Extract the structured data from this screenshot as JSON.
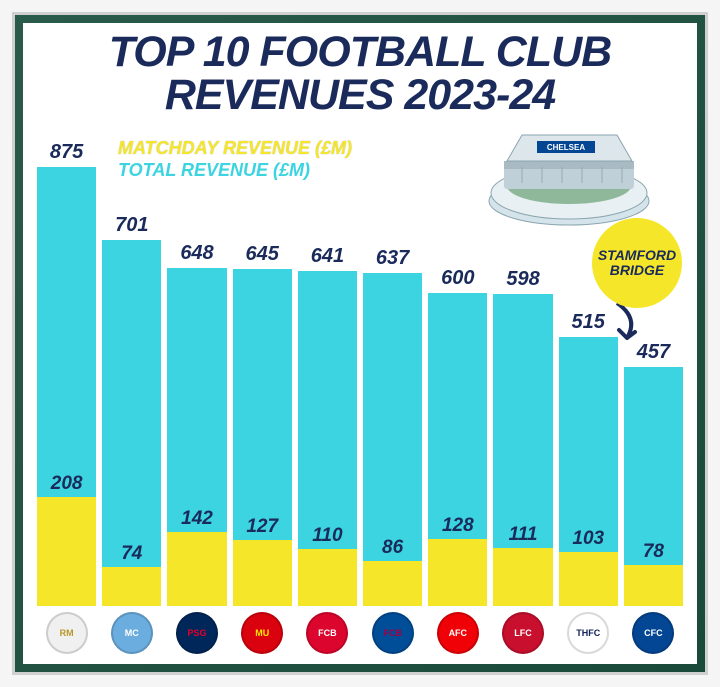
{
  "title_line1": "TOP 10 FOOTBALL CLUB",
  "title_line2": "REVENUES 2023-24",
  "title_fontsize": 43,
  "legend": {
    "matchday": "MATCHDAY REVENUE (£M)",
    "total": "TOTAL REVENUE (£M)",
    "fontsize": 18
  },
  "callout": {
    "line1": "STAMFORD",
    "line2": "BRIDGE"
  },
  "chart": {
    "type": "stacked-bar",
    "y_max": 900,
    "label_fontsize": 20,
    "match_label_fontsize": 19,
    "colors": {
      "total": "#3bd4e0",
      "matchday": "#f5e62a",
      "label": "#1a2a5a"
    },
    "bars": [
      {
        "club": "Real Madrid",
        "abbr": "RM",
        "crest_bg": "#f0f0f0",
        "crest_fg": "#b8972a",
        "total": 875,
        "matchday": 208
      },
      {
        "club": "Man City",
        "abbr": "MC",
        "crest_bg": "#6caddf",
        "crest_fg": "#ffffff",
        "total": 701,
        "matchday": 74
      },
      {
        "club": "PSG",
        "abbr": "PSG",
        "crest_bg": "#00275a",
        "crest_fg": "#e3002b",
        "total": 648,
        "matchday": 142
      },
      {
        "club": "Man United",
        "abbr": "MU",
        "crest_bg": "#da020e",
        "crest_fg": "#ffe500",
        "total": 645,
        "matchday": 127
      },
      {
        "club": "Bayern",
        "abbr": "FCB",
        "crest_bg": "#dc052d",
        "crest_fg": "#ffffff",
        "total": 641,
        "matchday": 110
      },
      {
        "club": "Barcelona",
        "abbr": "FCB",
        "crest_bg": "#004d98",
        "crest_fg": "#a50044",
        "total": 637,
        "matchday": 86
      },
      {
        "club": "Arsenal",
        "abbr": "AFC",
        "crest_bg": "#ef0107",
        "crest_fg": "#ffffff",
        "total": 600,
        "matchday": 128
      },
      {
        "club": "Liverpool",
        "abbr": "LFC",
        "crest_bg": "#c8102e",
        "crest_fg": "#ffffff",
        "total": 598,
        "matchday": 111
      },
      {
        "club": "Tottenham",
        "abbr": "THFC",
        "crest_bg": "#ffffff",
        "crest_fg": "#132257",
        "total": 515,
        "matchday": 103
      },
      {
        "club": "Chelsea",
        "abbr": "CFC",
        "crest_bg": "#034694",
        "crest_fg": "#ffffff",
        "total": 457,
        "matchday": 78
      }
    ]
  }
}
